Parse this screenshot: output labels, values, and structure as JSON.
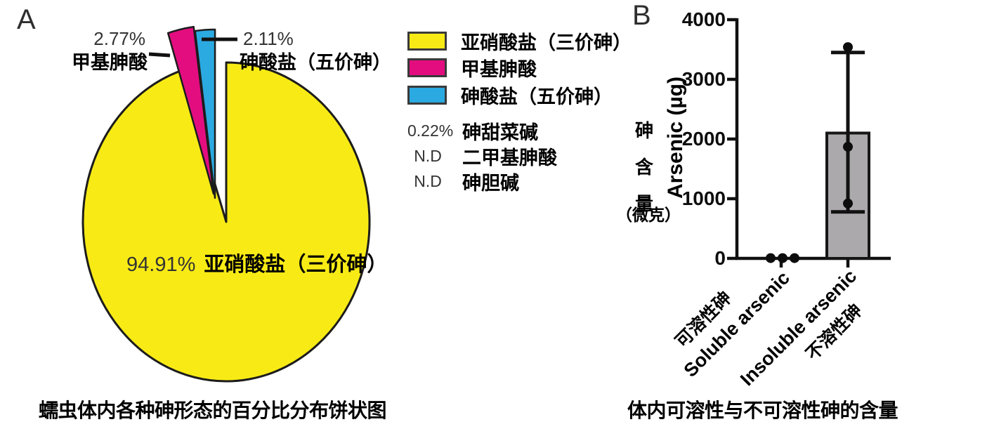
{
  "panelA": {
    "letter": "A",
    "caption": "蠕虫体内各种砷形态的百分比分布饼状图",
    "center_pct": "94.91%",
    "center_name": "亚硝酸盐（三价砷）",
    "callouts": [
      {
        "pct": "2.77%",
        "name": "甲基胂酸"
      },
      {
        "pct": "2.11%",
        "name": "砷酸盐（五价砷）"
      }
    ],
    "legend": [
      {
        "swatch": "#F8EB15",
        "label": "亚硝酸盐（三价砷）"
      },
      {
        "swatch": "#E40D80",
        "label": "甲基胂酸"
      },
      {
        "swatch": "#2BA9E1",
        "label": "砷酸盐（五价砷）"
      },
      {
        "prefix": "0.22%",
        "label": "砷甜菜碱"
      },
      {
        "prefix": "N.D",
        "label": "二甲基胂酸"
      },
      {
        "prefix": "N.D",
        "label": "砷胆碱"
      }
    ]
  },
  "panelB": {
    "letter": "B",
    "caption": "体内可溶性与不可溶性砷的含量",
    "y_title_en": "Arsenic (µg)",
    "y_zh_chars": [
      "砷",
      "含",
      "量"
    ],
    "y_zh_unit": "（微克）"
  },
  "chart_data": [
    {
      "type": "pie",
      "title": "蠕虫体内各种砷形态的百分比分布饼状图",
      "slices": [
        {
          "label": "亚硝酸盐（三价砷）",
          "pct": 94.91,
          "color": "#F8EB15"
        },
        {
          "label": "砷甜菜碱",
          "pct": 0.22,
          "color": null
        },
        {
          "label": "甲基胂酸",
          "pct": 2.77,
          "color": "#E40D80"
        },
        {
          "label": "砷酸盐（五价砷）",
          "pct": 2.11,
          "color": "#2BA9E1"
        }
      ],
      "not_detected": [
        "二甲基胂酸",
        "砷胆碱"
      ],
      "outline_color": "#1c1c1c"
    },
    {
      "type": "bar",
      "title": "体内可溶性与不可溶性砷的含量",
      "ylabel": "Arsenic (µg)",
      "ylabel_zh": "砷含量（微克）",
      "ylim": [
        0,
        4000
      ],
      "yticks": [
        0,
        1000,
        2000,
        3000,
        4000
      ],
      "categories": [
        {
          "en": "Soluble arsenic",
          "zh": "可溶性砷"
        },
        {
          "en": "Insoluble arsenic",
          "zh": "不溶性砷"
        }
      ],
      "bars": [
        {
          "mean": 0,
          "err_low": null,
          "err_high": null,
          "points": [
            5,
            5,
            5
          ],
          "fill": null
        },
        {
          "mean": 2100,
          "err_low": 780,
          "err_high": 3450,
          "points": [
            3540,
            1870,
            920
          ],
          "fill": "#ABA9AC"
        }
      ],
      "axis_color": "#111111"
    }
  ]
}
